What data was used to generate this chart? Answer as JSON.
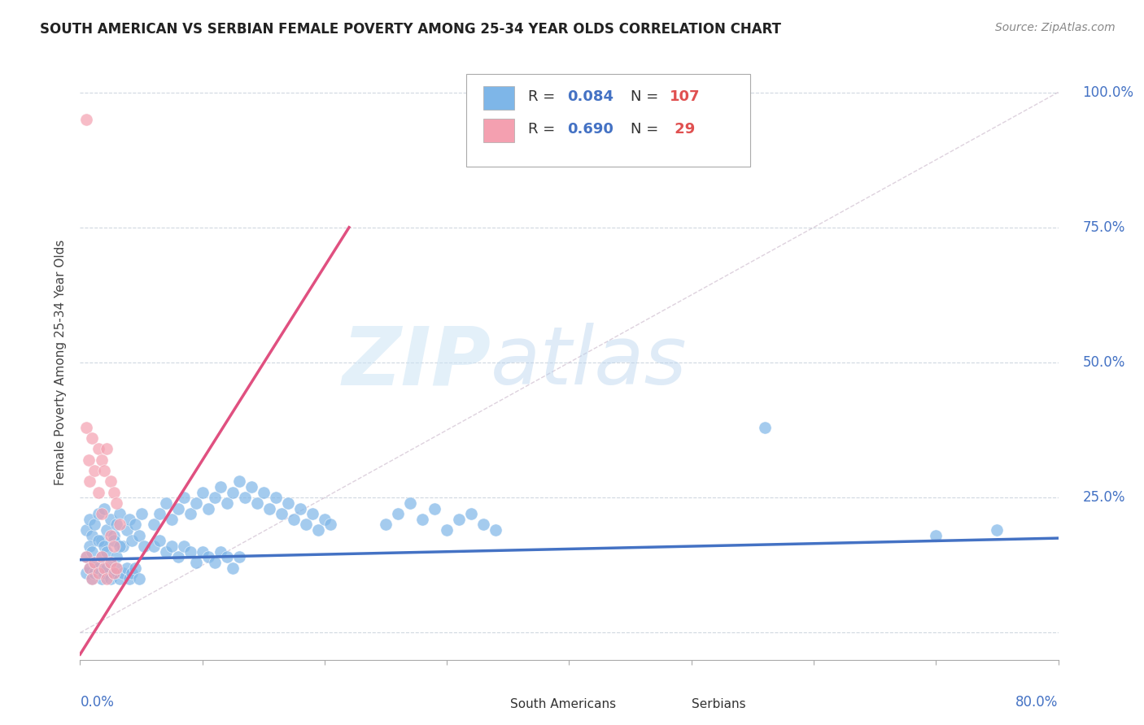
{
  "title": "SOUTH AMERICAN VS SERBIAN FEMALE POVERTY AMONG 25-34 YEAR OLDS CORRELATION CHART",
  "source": "Source: ZipAtlas.com",
  "ylabel": "Female Poverty Among 25-34 Year Olds",
  "xlim": [
    0.0,
    0.8
  ],
  "ylim": [
    -0.05,
    1.05
  ],
  "sa_color": "#7eb6e8",
  "serbian_color": "#f4a0b0",
  "sa_line_color": "#4472c4",
  "serbian_line_color": "#e05080",
  "diagonal_color": "#c8b4c8",
  "background_color": "#ffffff",
  "grid_color": "#d0d8e0",
  "sa_scatter": [
    [
      0.005,
      0.19
    ],
    [
      0.008,
      0.21
    ],
    [
      0.01,
      0.18
    ],
    [
      0.012,
      0.2
    ],
    [
      0.015,
      0.22
    ],
    [
      0.018,
      0.17
    ],
    [
      0.02,
      0.23
    ],
    [
      0.022,
      0.19
    ],
    [
      0.025,
      0.21
    ],
    [
      0.028,
      0.18
    ],
    [
      0.03,
      0.2
    ],
    [
      0.032,
      0.22
    ],
    [
      0.035,
      0.16
    ],
    [
      0.038,
      0.19
    ],
    [
      0.04,
      0.21
    ],
    [
      0.042,
      0.17
    ],
    [
      0.045,
      0.2
    ],
    [
      0.048,
      0.18
    ],
    [
      0.05,
      0.22
    ],
    [
      0.052,
      0.16
    ],
    [
      0.005,
      0.14
    ],
    [
      0.008,
      0.16
    ],
    [
      0.01,
      0.15
    ],
    [
      0.012,
      0.13
    ],
    [
      0.015,
      0.17
    ],
    [
      0.018,
      0.14
    ],
    [
      0.02,
      0.16
    ],
    [
      0.022,
      0.15
    ],
    [
      0.025,
      0.13
    ],
    [
      0.028,
      0.17
    ],
    [
      0.03,
      0.14
    ],
    [
      0.032,
      0.16
    ],
    [
      0.005,
      0.11
    ],
    [
      0.008,
      0.12
    ],
    [
      0.01,
      0.1
    ],
    [
      0.012,
      0.11
    ],
    [
      0.015,
      0.12
    ],
    [
      0.018,
      0.1
    ],
    [
      0.02,
      0.11
    ],
    [
      0.022,
      0.12
    ],
    [
      0.025,
      0.1
    ],
    [
      0.028,
      0.11
    ],
    [
      0.03,
      0.12
    ],
    [
      0.032,
      0.1
    ],
    [
      0.035,
      0.11
    ],
    [
      0.038,
      0.12
    ],
    [
      0.04,
      0.1
    ],
    [
      0.042,
      0.11
    ],
    [
      0.045,
      0.12
    ],
    [
      0.048,
      0.1
    ],
    [
      0.06,
      0.2
    ],
    [
      0.065,
      0.22
    ],
    [
      0.07,
      0.24
    ],
    [
      0.075,
      0.21
    ],
    [
      0.08,
      0.23
    ],
    [
      0.085,
      0.25
    ],
    [
      0.09,
      0.22
    ],
    [
      0.095,
      0.24
    ],
    [
      0.1,
      0.26
    ],
    [
      0.105,
      0.23
    ],
    [
      0.11,
      0.25
    ],
    [
      0.115,
      0.27
    ],
    [
      0.12,
      0.24
    ],
    [
      0.125,
      0.26
    ],
    [
      0.13,
      0.28
    ],
    [
      0.135,
      0.25
    ],
    [
      0.14,
      0.27
    ],
    [
      0.145,
      0.24
    ],
    [
      0.15,
      0.26
    ],
    [
      0.155,
      0.23
    ],
    [
      0.16,
      0.25
    ],
    [
      0.165,
      0.22
    ],
    [
      0.17,
      0.24
    ],
    [
      0.175,
      0.21
    ],
    [
      0.18,
      0.23
    ],
    [
      0.185,
      0.2
    ],
    [
      0.19,
      0.22
    ],
    [
      0.195,
      0.19
    ],
    [
      0.2,
      0.21
    ],
    [
      0.205,
      0.2
    ],
    [
      0.06,
      0.16
    ],
    [
      0.065,
      0.17
    ],
    [
      0.07,
      0.15
    ],
    [
      0.075,
      0.16
    ],
    [
      0.08,
      0.14
    ],
    [
      0.085,
      0.16
    ],
    [
      0.09,
      0.15
    ],
    [
      0.095,
      0.13
    ],
    [
      0.1,
      0.15
    ],
    [
      0.105,
      0.14
    ],
    [
      0.11,
      0.13
    ],
    [
      0.115,
      0.15
    ],
    [
      0.12,
      0.14
    ],
    [
      0.125,
      0.12
    ],
    [
      0.13,
      0.14
    ],
    [
      0.25,
      0.2
    ],
    [
      0.26,
      0.22
    ],
    [
      0.27,
      0.24
    ],
    [
      0.28,
      0.21
    ],
    [
      0.29,
      0.23
    ],
    [
      0.3,
      0.19
    ],
    [
      0.31,
      0.21
    ],
    [
      0.32,
      0.22
    ],
    [
      0.33,
      0.2
    ],
    [
      0.34,
      0.19
    ],
    [
      0.56,
      0.38
    ],
    [
      0.7,
      0.18
    ],
    [
      0.75,
      0.19
    ]
  ],
  "serbian_scatter": [
    [
      0.005,
      0.38
    ],
    [
      0.007,
      0.32
    ],
    [
      0.008,
      0.28
    ],
    [
      0.01,
      0.36
    ],
    [
      0.012,
      0.3
    ],
    [
      0.015,
      0.34
    ],
    [
      0.015,
      0.26
    ],
    [
      0.018,
      0.32
    ],
    [
      0.018,
      0.22
    ],
    [
      0.02,
      0.3
    ],
    [
      0.022,
      0.34
    ],
    [
      0.025,
      0.28
    ],
    [
      0.025,
      0.18
    ],
    [
      0.028,
      0.26
    ],
    [
      0.028,
      0.16
    ],
    [
      0.03,
      0.24
    ],
    [
      0.032,
      0.2
    ],
    [
      0.005,
      0.14
    ],
    [
      0.008,
      0.12
    ],
    [
      0.01,
      0.1
    ],
    [
      0.012,
      0.13
    ],
    [
      0.015,
      0.11
    ],
    [
      0.018,
      0.14
    ],
    [
      0.02,
      0.12
    ],
    [
      0.022,
      0.1
    ],
    [
      0.025,
      0.13
    ],
    [
      0.028,
      0.11
    ],
    [
      0.03,
      0.12
    ],
    [
      0.005,
      0.95
    ]
  ],
  "sa_line_x": [
    0.0,
    0.8
  ],
  "sa_line_y": [
    0.135,
    0.175
  ],
  "serb_line_x": [
    0.0,
    0.22
  ],
  "serb_line_y": [
    -0.04,
    0.75
  ]
}
